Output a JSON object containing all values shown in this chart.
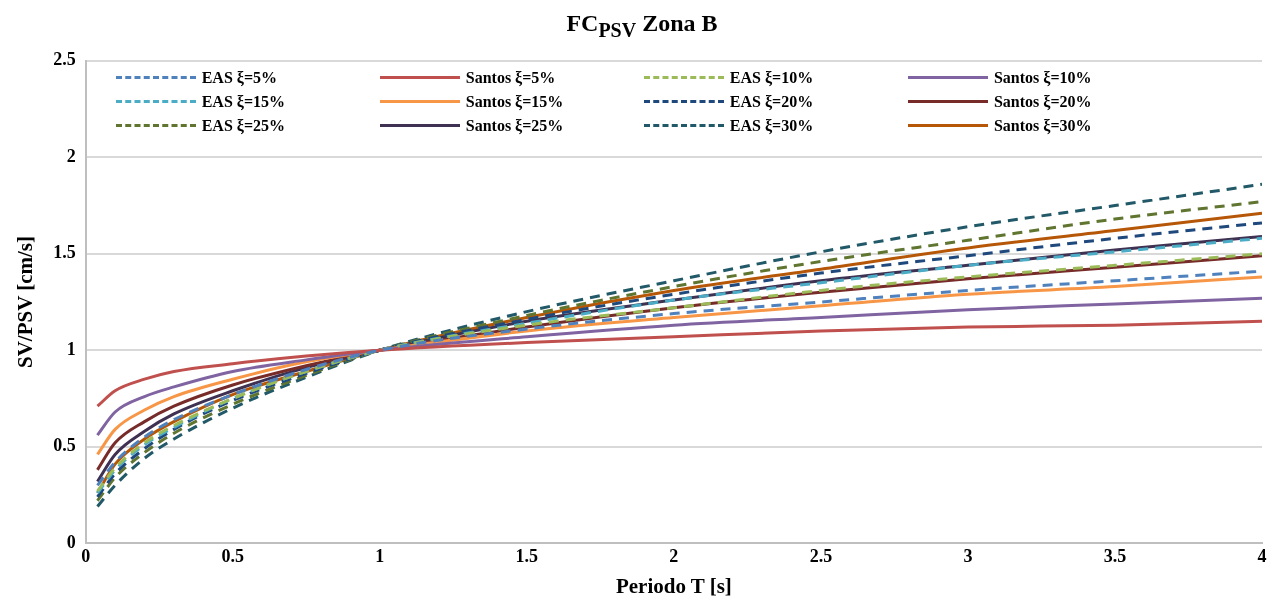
{
  "chart_data": {
    "type": "line",
    "title": "FC$_{PSV}$ Zona B",
    "xlabel": "Periodo T [s]",
    "ylabel": "SV/PSV [cm/s]",
    "x": [
      0.04,
      0.1,
      0.2,
      0.3,
      0.5,
      0.75,
      1,
      1.5,
      2,
      2.5,
      3,
      3.5,
      4
    ],
    "xlim": [
      0,
      4
    ],
    "xticks": [
      0,
      0.5,
      1,
      1.5,
      2,
      2.5,
      3,
      3.5,
      4
    ],
    "ylim": [
      0,
      2.5
    ],
    "yticks": [
      0,
      0.5,
      1,
      1.5,
      2,
      2.5
    ],
    "grid": "y",
    "legend": "top",
    "marker": "none",
    "series": [
      {
        "name": "EAS ξ=5%",
        "color": "#4f81bd",
        "line_style": "dashed",
        "values": [
          0.3,
          0.42,
          0.55,
          0.64,
          0.77,
          0.9,
          1,
          1.11,
          1.19,
          1.25,
          1.31,
          1.36,
          1.41
        ]
      },
      {
        "name": "Santos ξ=5%",
        "color": "#c0504d",
        "line_style": "solid",
        "values": [
          0.71,
          0.79,
          0.85,
          0.89,
          0.93,
          0.97,
          1,
          1.04,
          1.07,
          1.1,
          1.12,
          1.13,
          1.15
        ]
      },
      {
        "name": "EAS ξ=10%",
        "color": "#9bbb59",
        "line_style": "dashed",
        "values": [
          0.27,
          0.39,
          0.52,
          0.61,
          0.75,
          0.89,
          1,
          1.13,
          1.22,
          1.31,
          1.38,
          1.44,
          1.5
        ]
      },
      {
        "name": "Santos ξ=10%",
        "color": "#8064a2",
        "line_style": "solid",
        "values": [
          0.56,
          0.68,
          0.76,
          0.81,
          0.89,
          0.95,
          1,
          1.07,
          1.13,
          1.17,
          1.21,
          1.24,
          1.27
        ]
      },
      {
        "name": "EAS ξ=15%",
        "color": "#4bacc6",
        "line_style": "dashed",
        "values": [
          0.26,
          0.38,
          0.51,
          0.6,
          0.75,
          0.89,
          1,
          1.14,
          1.26,
          1.35,
          1.44,
          1.51,
          1.58
        ]
      },
      {
        "name": "Santos ξ=15%",
        "color": "#f79646",
        "line_style": "solid",
        "values": [
          0.46,
          0.59,
          0.69,
          0.76,
          0.85,
          0.94,
          1,
          1.1,
          1.17,
          1.23,
          1.29,
          1.33,
          1.38
        ]
      },
      {
        "name": "EAS ξ=20%",
        "color": "#1f497d",
        "line_style": "dashed",
        "values": [
          0.24,
          0.36,
          0.49,
          0.59,
          0.74,
          0.88,
          1,
          1.16,
          1.29,
          1.4,
          1.49,
          1.58,
          1.66
        ]
      },
      {
        "name": "Santos ξ=20%",
        "color": "#772c2a",
        "line_style": "solid",
        "values": [
          0.38,
          0.52,
          0.63,
          0.71,
          0.82,
          0.92,
          1,
          1.12,
          1.22,
          1.3,
          1.37,
          1.43,
          1.49
        ]
      },
      {
        "name": "EAS ξ=25%",
        "color": "#5f7530",
        "line_style": "dashed",
        "values": [
          0.22,
          0.34,
          0.47,
          0.57,
          0.72,
          0.87,
          1,
          1.18,
          1.33,
          1.46,
          1.57,
          1.68,
          1.77
        ]
      },
      {
        "name": "Santos ξ=25%",
        "color": "#3f3151",
        "line_style": "solid",
        "values": [
          0.32,
          0.46,
          0.58,
          0.67,
          0.79,
          0.91,
          1,
          1.15,
          1.26,
          1.36,
          1.44,
          1.52,
          1.59
        ]
      },
      {
        "name": "EAS ξ=30%",
        "color": "#215968",
        "line_style": "dashed",
        "values": [
          0.19,
          0.3,
          0.44,
          0.54,
          0.7,
          0.86,
          1,
          1.2,
          1.36,
          1.51,
          1.64,
          1.75,
          1.86
        ]
      },
      {
        "name": "Santos ξ=30%",
        "color": "#b65708",
        "line_style": "solid",
        "values": [
          0.26,
          0.41,
          0.54,
          0.63,
          0.77,
          0.89,
          1,
          1.17,
          1.31,
          1.42,
          1.53,
          1.62,
          1.71
        ]
      }
    ]
  }
}
